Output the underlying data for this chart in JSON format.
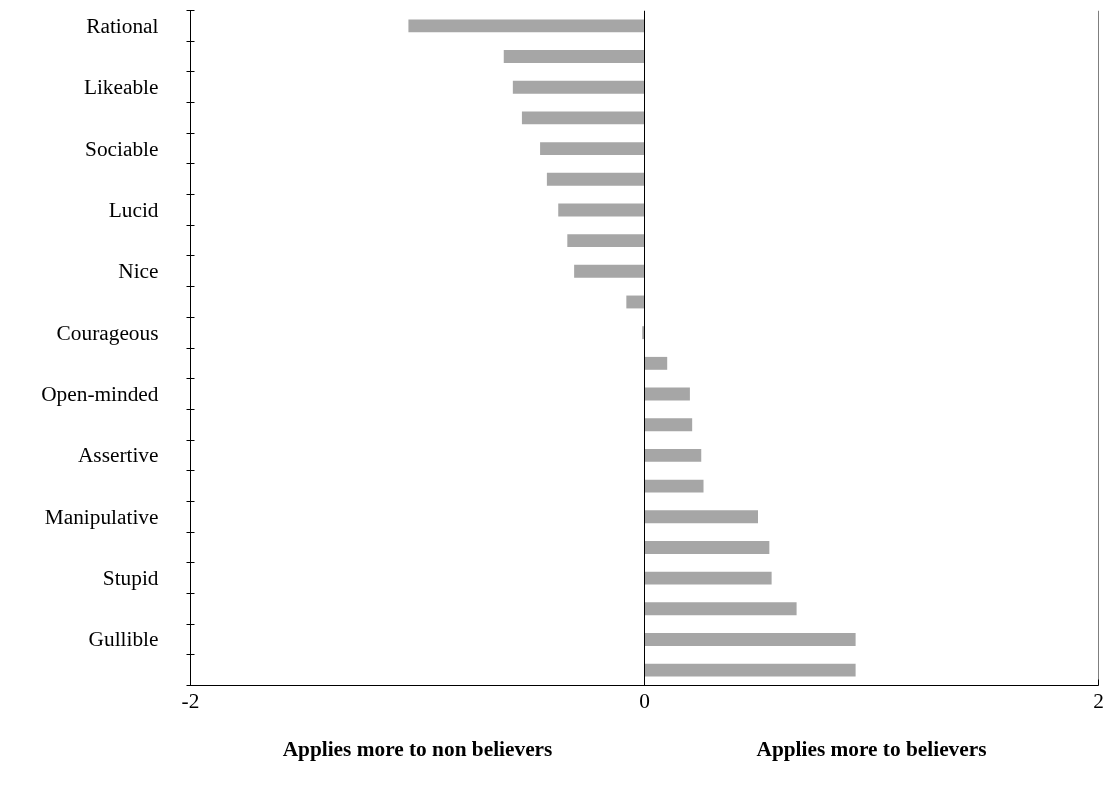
{
  "chart_data": {
    "type": "bar",
    "orientation": "horizontal",
    "categories": [
      "Rational",
      null,
      "Likeable",
      null,
      "Sociable",
      null,
      "Lucid",
      null,
      "Nice",
      null,
      "Courageous",
      null,
      "Open-minded",
      null,
      "Assertive",
      null,
      "Manipulative",
      null,
      "Stupid",
      null,
      "Gullible",
      null
    ],
    "values": [
      -1.04,
      -0.62,
      -0.58,
      -0.54,
      -0.46,
      -0.43,
      -0.38,
      -0.34,
      -0.31,
      -0.08,
      -0.01,
      0.1,
      0.2,
      0.21,
      0.25,
      0.26,
      0.5,
      0.55,
      0.56,
      0.67,
      0.93,
      0.93
    ],
    "color": "#a6a6a6",
    "xlim": [
      -2,
      2
    ],
    "xticks": [
      -2,
      0,
      2
    ],
    "ref_lines": [
      {
        "axis": "x",
        "value": 0,
        "color": "#000000"
      }
    ],
    "annotations": [
      "Applies more to non believers",
      "Applies more to believers"
    ],
    "grid": false
  }
}
